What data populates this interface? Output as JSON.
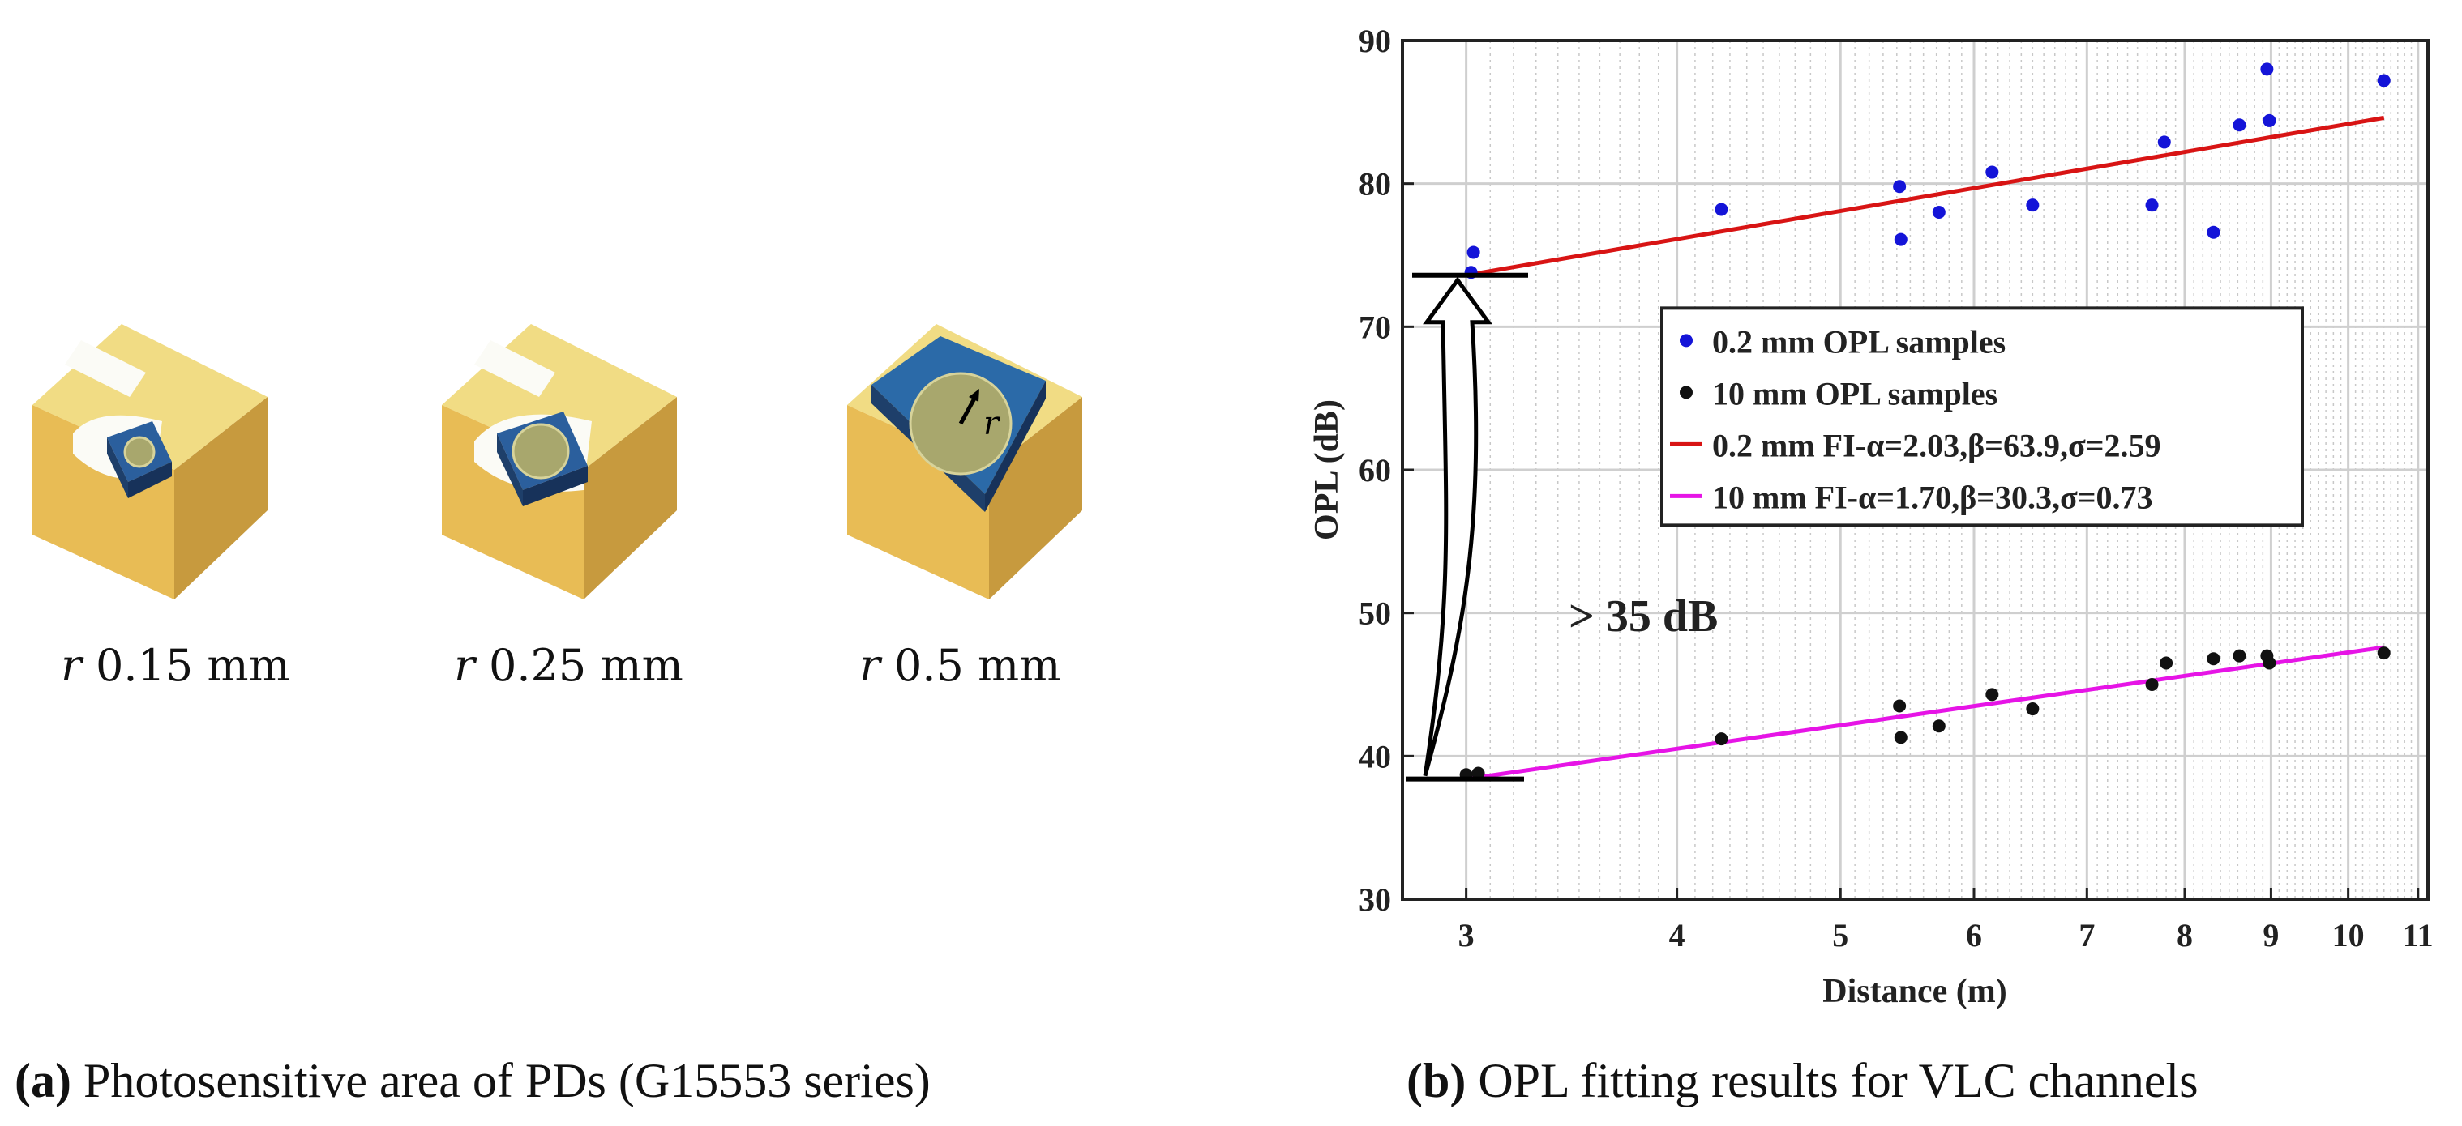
{
  "panel_a": {
    "items": [
      {
        "symbol": "r",
        "value": "0.15 mm"
      },
      {
        "symbol": "r",
        "value": "0.25 mm"
      },
      {
        "symbol": "r",
        "value": "0.5 mm"
      }
    ],
    "radius_marker": "r",
    "caption": {
      "label": "(a)",
      "text": "Photosensitive area of PDs (G15553 series)"
    }
  },
  "panel_b": {
    "caption": {
      "label": "(b)",
      "text": "OPL fitting results for VLC channels"
    }
  },
  "colors": {
    "red_fit": "#d81414",
    "magenta_fit": "#e614e6",
    "blue_points": "#1414d8",
    "black_points": "#111111"
  },
  "chart_data": {
    "type": "scatter",
    "xscale": "log",
    "xlabel": "Distance (m)",
    "ylabel": "OPL (dB)",
    "xlim": [
      2.75,
      11.15
    ],
    "ylim": [
      30,
      90
    ],
    "xticks": [
      3,
      4,
      5,
      6,
      7,
      8,
      9,
      10,
      11
    ],
    "yticks": [
      30,
      40,
      50,
      60,
      70,
      80,
      90
    ],
    "grid": true,
    "legend_position": "center",
    "annotation": "> 35 dB",
    "series": [
      {
        "name": "0.2 mm OPL samples",
        "kind": "points",
        "color": "#1414d8",
        "x": [
          3.02,
          3.03,
          4.25,
          5.42,
          5.43,
          5.72,
          6.15,
          6.5,
          7.65,
          7.78,
          8.32,
          8.62,
          8.95,
          8.98,
          10.5
        ],
        "y": [
          73.8,
          75.2,
          78.2,
          79.8,
          76.1,
          78.0,
          80.8,
          78.5,
          78.5,
          82.9,
          76.6,
          84.1,
          88.0,
          84.4,
          87.2
        ]
      },
      {
        "name": "10 mm OPL samples",
        "kind": "points",
        "color": "#111111",
        "x": [
          3.0,
          3.05,
          4.25,
          5.42,
          5.43,
          5.72,
          6.15,
          6.5,
          7.65,
          7.8,
          8.32,
          8.62,
          8.95,
          8.98,
          10.5
        ],
        "y": [
          38.7,
          38.8,
          41.2,
          43.5,
          41.3,
          42.1,
          44.3,
          43.3,
          45.0,
          46.5,
          46.8,
          47.0,
          47.0,
          46.5,
          47.2
        ]
      },
      {
        "name": "0.2 mm FI-α=2.03,β=63.9,σ=2.59",
        "kind": "line",
        "color": "#d81414",
        "alpha": 2.03,
        "beta": 63.9,
        "sigma": 2.59,
        "x": [
          3.0,
          10.5
        ],
        "y": [
          73.6,
          84.6
        ]
      },
      {
        "name": "10 mm FI-α=1.70,β=30.3,σ=0.73",
        "kind": "line",
        "color": "#e614e6",
        "alpha": 1.7,
        "beta": 30.3,
        "sigma": 0.73,
        "x": [
          3.0,
          10.5
        ],
        "y": [
          38.4,
          47.6
        ]
      }
    ]
  }
}
